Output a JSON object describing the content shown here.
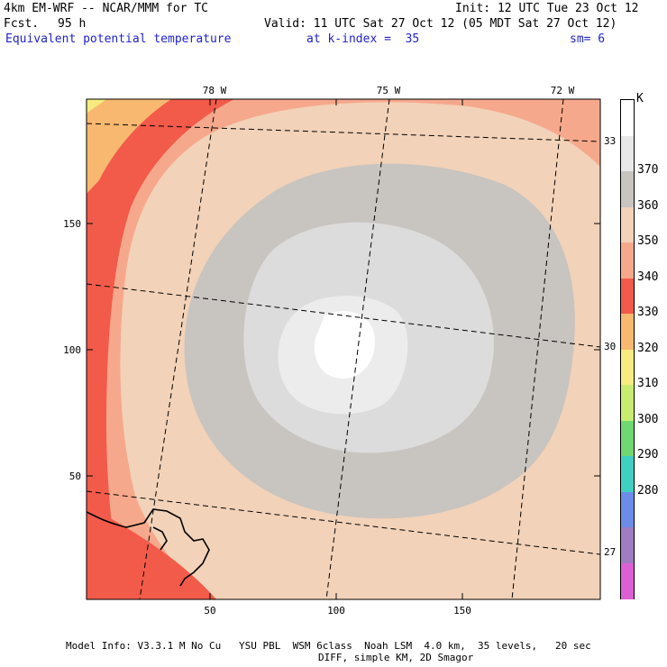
{
  "header": {
    "model": "4km EM-WRF -- NCAR/MMM for TC",
    "init": "Init: 12 UTC Tue 23 Oct 12",
    "fcst_label": "Fcst.",
    "fcst_value": "95 h",
    "valid": "Valid: 11 UTC Sat 27 Oct 12 (05 MDT Sat 27 Oct 12)",
    "field": "Equivalent potential temperature",
    "level": "at k-index =  35",
    "sm": "sm= 6"
  },
  "map": {
    "lon_labels": [
      "78 W",
      "75 W",
      "72 W"
    ],
    "lat_labels": [
      "33 N",
      "30 N",
      "27 N"
    ],
    "x_ticks": [
      "50",
      "100",
      "150"
    ],
    "y_ticks": [
      "150",
      "100",
      "50"
    ]
  },
  "colorbar": {
    "unit": "K",
    "levels": [
      "370",
      "360",
      "350",
      "340",
      "330",
      "320",
      "310",
      "300",
      "290",
      "280"
    ],
    "colors": [
      "#ffffff",
      "#e8e8e8",
      "#c8c4c0",
      "#f2d2b8",
      "#f6a88c",
      "#f25a4a",
      "#f8b870",
      "#f6ec80",
      "#c8ec70",
      "#70d870",
      "#40d0c0",
      "#6c8ce8",
      "#a07cc0",
      "#dc60d4"
    ]
  },
  "footer": {
    "line1": "Model Info: V3.3.1 M No Cu   YSU PBL  WSM 6class  Noah LSM  4.0 km,  35 levels,   20 sec",
    "line2": "DIFF, simple KM, 2D Smagor"
  }
}
